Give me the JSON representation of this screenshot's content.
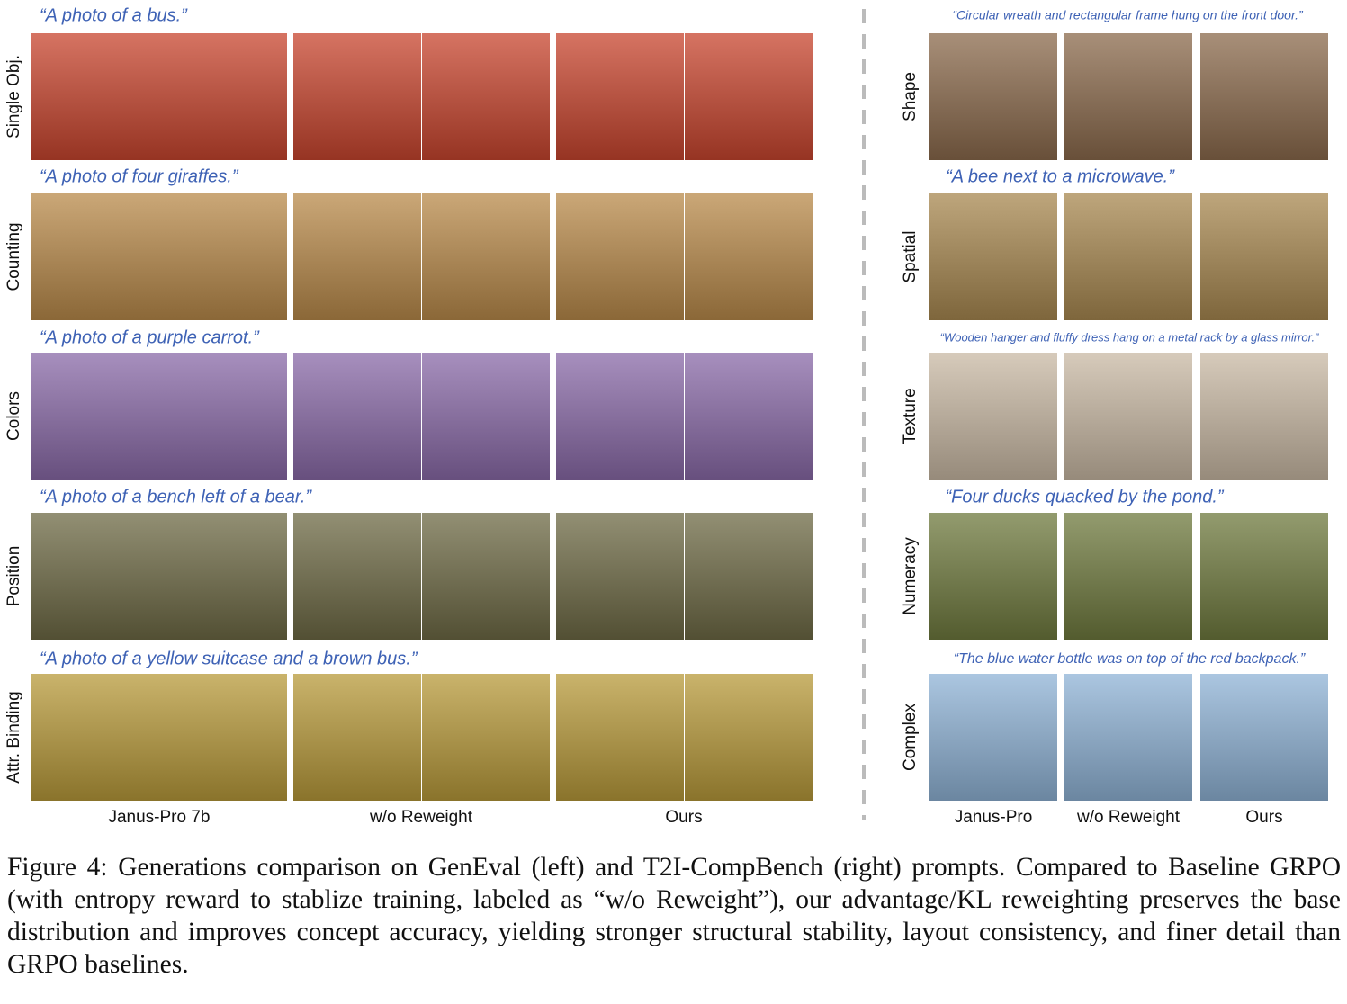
{
  "left": {
    "rows": [
      {
        "label": "Single Obj.",
        "prompt": "“A photo of a bus.”"
      },
      {
        "label": "Counting",
        "prompt": "“A photo of four giraffes.”"
      },
      {
        "label": "Colors",
        "prompt": "“A photo of a purple carrot.”"
      },
      {
        "label": "Position",
        "prompt": "“A photo of a bench left of a bear.”"
      },
      {
        "label": "Attr. Binding",
        "prompt": "“A photo of a yellow suitcase and a brown bus.”"
      }
    ],
    "columns": [
      "Janus-Pro 7b",
      "w/o Reweight",
      "Ours"
    ]
  },
  "right": {
    "rows": [
      {
        "label": "Shape",
        "prompt": "“Circular wreath and rectangular frame hung on the front door.”"
      },
      {
        "label": "Spatial",
        "prompt": "“A bee next to a microwave.”"
      },
      {
        "label": "Texture",
        "prompt": "“Wooden hanger and fluffy dress hang on a metal rack by a glass mirror.”"
      },
      {
        "label": "Numeracy",
        "prompt": "“Four ducks quacked by the pond.”"
      },
      {
        "label": "Complex",
        "prompt": "“The blue water bottle was on top of the red backpack.”"
      }
    ],
    "columns": [
      "Janus-Pro",
      "w/o Reweight",
      "Ours"
    ]
  },
  "caption": "Figure 4: Generations comparison on GenEval (left) and T2I-CompBench (right) prompts. Compared to Baseline GRPO (with entropy reward to stablize training, labeled as “w/o Reweight”), our advantage/KL reweighting preserves the base distribution and improves concept accuracy, yielding stronger structural stability, layout consistency, and finer detail than GRPO baselines."
}
